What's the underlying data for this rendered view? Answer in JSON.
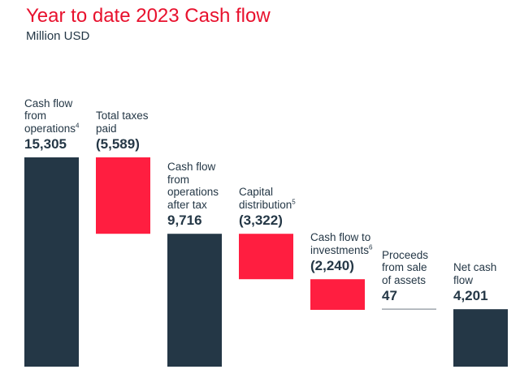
{
  "title": "Year to date 2023 Cash flow",
  "subtitle": "Million USD",
  "colors": {
    "title": "#e8112d",
    "total_bar": "#243746",
    "negative_bar": "#ff1e40",
    "connector": "#9fa6ad",
    "text": "#243746"
  },
  "chart_data": {
    "type": "bar",
    "subtype": "waterfall",
    "title": "Year to date 2023 Cash flow",
    "ylabel": "Million USD",
    "ylim": [
      0,
      16000
    ],
    "steps": [
      {
        "label_lines": [
          "Cash flow",
          "from",
          "operations"
        ],
        "sup": "4",
        "value_label": "15,305",
        "value": 15305,
        "kind": "total"
      },
      {
        "label_lines": [
          "Total taxes",
          "paid"
        ],
        "sup": "",
        "value_label": "(5,589)",
        "value": -5589,
        "kind": "delta"
      },
      {
        "label_lines": [
          "Cash flow",
          "from",
          "operations",
          "after tax"
        ],
        "sup": "",
        "value_label": "9,716",
        "value": 9716,
        "kind": "total"
      },
      {
        "label_lines": [
          "Capital",
          "distribution"
        ],
        "sup": "5",
        "value_label": "(3,322)",
        "value": -3322,
        "kind": "delta"
      },
      {
        "label_lines": [
          "Cash flow to",
          "investments"
        ],
        "sup": "6",
        "value_label": "(2,240)",
        "value": -2240,
        "kind": "delta"
      },
      {
        "label_lines": [
          "Proceeds",
          "from sale",
          "of assets"
        ],
        "sup": "",
        "value_label": "47",
        "value": 47,
        "kind": "delta"
      },
      {
        "label_lines": [
          "Net cash",
          "flow"
        ],
        "sup": "",
        "value_label": "4,201",
        "value": 4201,
        "kind": "total"
      }
    ]
  }
}
